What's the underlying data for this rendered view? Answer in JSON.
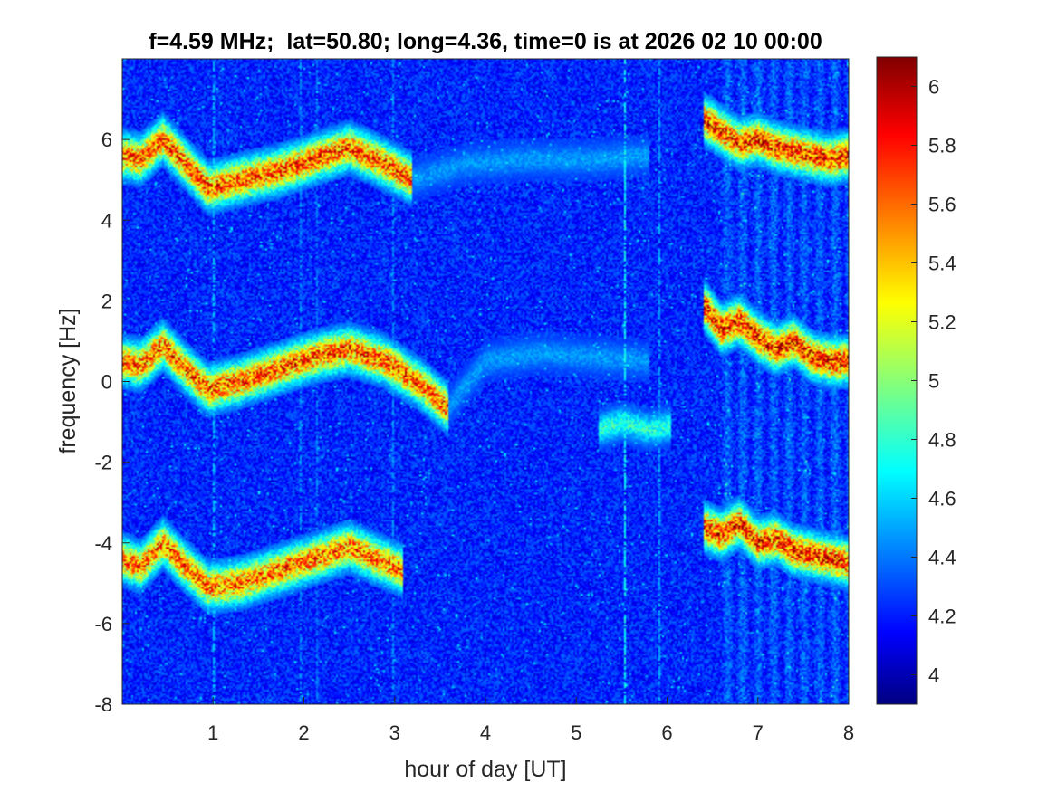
{
  "chart_data": {
    "type": "heatmap",
    "title": "f=4.59 MHz;  lat=50.80; long=4.36, time=0 is at 2026 02 10 00:00",
    "xlabel": "hour of day [UT]",
    "ylabel": "frequency [Hz]",
    "xlim": [
      0,
      8
    ],
    "ylim": [
      -8,
      8
    ],
    "x_ticks": [
      1,
      2,
      3,
      4,
      5,
      6,
      7,
      8
    ],
    "x_tick_labels": [
      "1",
      "2",
      "3",
      "4",
      "5",
      "6",
      "7",
      "8"
    ],
    "y_ticks": [
      -8,
      -6,
      -4,
      -2,
      0,
      2,
      4,
      6
    ],
    "y_tick_labels": [
      "-8",
      "-6",
      "-4",
      "-2",
      "0",
      "2",
      "4",
      "6"
    ],
    "colormap": "jet",
    "clim": [
      3.9,
      6.1
    ],
    "colorbar_ticks": [
      4,
      4.2,
      4.4,
      4.6,
      4.8,
      5,
      5.2,
      5.4,
      5.6,
      5.8,
      6
    ],
    "colorbar_tick_labels": [
      "4",
      "4.2",
      "4.4",
      "4.6",
      "4.8",
      "5",
      "5.2",
      "5.4",
      "5.6",
      "5.8",
      "6"
    ],
    "background_level": 4.25,
    "traces": [
      {
        "x": [
          0.0,
          0.2,
          0.45,
          0.7,
          0.95,
          1.3,
          1.7,
          2.1,
          2.5,
          2.8,
          3.2
        ],
        "y": [
          5.6,
          5.5,
          6.0,
          5.4,
          4.8,
          5.0,
          5.2,
          5.5,
          5.8,
          5.5,
          5.0
        ],
        "peak": 5.85
      },
      {
        "x": [
          0.0,
          0.2,
          0.45,
          0.7,
          0.95,
          1.3,
          1.7,
          2.1,
          2.5,
          2.9,
          3.3,
          3.6
        ],
        "y": [
          0.5,
          0.4,
          0.9,
          0.3,
          -0.2,
          0.0,
          0.3,
          0.6,
          0.8,
          0.5,
          -0.1,
          -0.7
        ],
        "peak": 5.85
      },
      {
        "x": [
          0.0,
          0.2,
          0.45,
          0.7,
          0.95,
          1.3,
          1.7,
          2.1,
          2.5,
          2.8,
          3.1
        ],
        "y": [
          -4.4,
          -4.6,
          -4.0,
          -4.6,
          -5.1,
          -5.0,
          -4.7,
          -4.4,
          -4.1,
          -4.4,
          -4.7
        ],
        "peak": 5.8
      },
      {
        "x": [
          6.4,
          6.6,
          6.8,
          7.0,
          7.2,
          7.4,
          7.6,
          7.8,
          8.0
        ],
        "y": [
          6.5,
          6.2,
          5.9,
          6.0,
          5.8,
          5.7,
          5.6,
          5.5,
          5.6
        ],
        "peak": 5.95
      },
      {
        "x": [
          6.4,
          6.5,
          6.6,
          6.8,
          7.0,
          7.2,
          7.4,
          7.6,
          7.8,
          8.0
        ],
        "y": [
          1.9,
          1.6,
          1.3,
          1.5,
          1.1,
          0.8,
          1.0,
          0.6,
          0.5,
          0.5
        ],
        "peak": 6.0
      },
      {
        "x": [
          6.4,
          6.6,
          6.8,
          7.0,
          7.2,
          7.4,
          7.6,
          7.8,
          8.0
        ],
        "y": [
          -3.6,
          -3.8,
          -3.5,
          -4.0,
          -3.9,
          -4.2,
          -4.3,
          -4.4,
          -4.5
        ],
        "peak": 5.95
      },
      {
        "x": [
          5.25,
          5.5,
          5.8,
          6.05
        ],
        "y": [
          -1.2,
          -1.0,
          -1.2,
          -1.1
        ],
        "peak": 4.9
      }
    ],
    "faint_traces": [
      {
        "x": [
          3.2,
          3.8,
          4.5,
          5.2,
          5.8
        ],
        "y": [
          5.0,
          5.4,
          5.5,
          5.5,
          5.6
        ],
        "peak": 4.55
      },
      {
        "x": [
          3.6,
          4.0,
          4.6,
          5.2,
          5.8
        ],
        "y": [
          -0.6,
          0.5,
          0.7,
          0.6,
          0.5
        ],
        "peak": 4.55
      }
    ],
    "vertical_lines": [
      {
        "x": 1.0,
        "level": 4.6
      },
      {
        "x": 1.97,
        "level": 4.5
      },
      {
        "x": 2.15,
        "level": 4.45
      },
      {
        "x": 2.98,
        "level": 4.5
      },
      {
        "x": 5.53,
        "level": 4.75
      },
      {
        "x": 5.91,
        "level": 4.55
      }
    ]
  }
}
